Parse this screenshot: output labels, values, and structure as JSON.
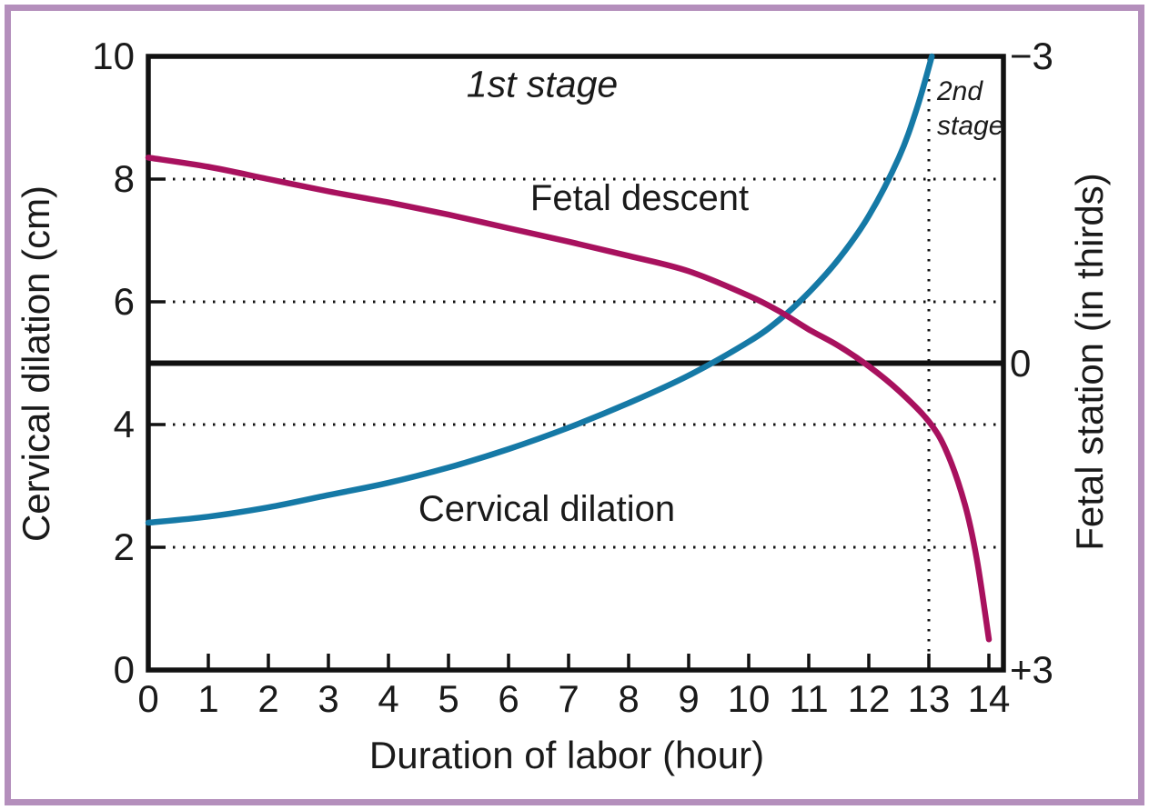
{
  "figure": {
    "border_color": "#b48fbc",
    "background_color": "#ffffff",
    "axis_color": "#111111"
  },
  "chart_data": {
    "type": "line",
    "xlabel": "Duration of labor (hour)",
    "ylabel_left": "Cervical dilation (cm)",
    "ylabel_right": "Fetal station (in thirds)",
    "xlim": [
      0,
      14.25
    ],
    "ylim_left": [
      0,
      10
    ],
    "ylim_right_stations": [
      -3,
      3
    ],
    "x_ticks": [
      "0",
      "1",
      "2",
      "3",
      "4",
      "5",
      "6",
      "7",
      "8",
      "9",
      "10",
      "11",
      "12",
      "13",
      "14"
    ],
    "y_ticks_left": [
      {
        "label": "0",
        "value": 0
      },
      {
        "label": "2",
        "value": 2
      },
      {
        "label": "4",
        "value": 4
      },
      {
        "label": "6",
        "value": 6
      },
      {
        "label": "8",
        "value": 8
      },
      {
        "label": "10",
        "value": 10
      }
    ],
    "y_ticks_right": [
      {
        "label": "−3",
        "station": -3,
        "at_dilation_scale": 10
      },
      {
        "label": "0",
        "station": 0,
        "at_dilation_scale": 5
      },
      {
        "label": "+3",
        "station": 3,
        "at_dilation_scale": 0
      }
    ],
    "grid": {
      "dotted_horizontal_at": [
        2,
        4,
        6,
        8
      ],
      "solid_zero_station_line_at_dilation_scale": 5,
      "dotted_stage_divider_at_hour": 13
    },
    "annotations": {
      "first_stage": "1st stage",
      "second_stage_line1": "2nd",
      "second_stage_line2": "stage"
    },
    "series": [
      {
        "name": "Cervical dilation",
        "label": "Cervical dilation",
        "color": "#1579a6",
        "axis": "left",
        "units": "cm",
        "points": [
          [
            0,
            2.4
          ],
          [
            1,
            2.5
          ],
          [
            2,
            2.65
          ],
          [
            3,
            2.85
          ],
          [
            4,
            3.05
          ],
          [
            5,
            3.3
          ],
          [
            6,
            3.6
          ],
          [
            7,
            3.95
          ],
          [
            8,
            4.35
          ],
          [
            9,
            4.8
          ],
          [
            10,
            5.35
          ],
          [
            10.5,
            5.7
          ],
          [
            11,
            6.15
          ],
          [
            11.5,
            6.7
          ],
          [
            12,
            7.4
          ],
          [
            12.5,
            8.35
          ],
          [
            12.8,
            9.15
          ],
          [
            13.05,
            10
          ]
        ]
      },
      {
        "name": "Fetal descent",
        "label": "Fetal descent",
        "color": "#a8115e",
        "axis": "right",
        "units": "station (thirds), plotted on left cm scale",
        "points": [
          [
            0,
            8.35
          ],
          [
            1,
            8.2
          ],
          [
            2,
            8.0
          ],
          [
            3,
            7.8
          ],
          [
            4,
            7.62
          ],
          [
            5,
            7.42
          ],
          [
            6,
            7.2
          ],
          [
            7,
            6.98
          ],
          [
            8,
            6.75
          ],
          [
            9,
            6.5
          ],
          [
            10,
            6.1
          ],
          [
            10.5,
            5.85
          ],
          [
            11,
            5.55
          ],
          [
            11.5,
            5.28
          ],
          [
            12,
            4.95
          ],
          [
            12.5,
            4.55
          ],
          [
            13,
            4.05
          ],
          [
            13.3,
            3.55
          ],
          [
            13.6,
            2.7
          ],
          [
            13.8,
            1.8
          ],
          [
            14,
            0.5
          ]
        ],
        "points_station": [
          [
            0,
            -2.0
          ],
          [
            1,
            -1.9
          ],
          [
            2,
            -1.8
          ],
          [
            3,
            -1.7
          ],
          [
            4,
            -1.6
          ],
          [
            5,
            -1.5
          ],
          [
            6,
            -1.3
          ],
          [
            7,
            -1.2
          ],
          [
            8,
            -1.1
          ],
          [
            9,
            -0.9
          ],
          [
            10,
            -0.7
          ],
          [
            10.5,
            -0.5
          ],
          [
            11,
            -0.3
          ],
          [
            11.5,
            -0.2
          ],
          [
            12,
            0.0
          ],
          [
            12.5,
            0.3
          ],
          [
            13,
            0.6
          ],
          [
            13.3,
            0.9
          ],
          [
            13.6,
            1.4
          ],
          [
            13.8,
            1.9
          ],
          [
            14,
            2.7
          ]
        ]
      }
    ]
  }
}
